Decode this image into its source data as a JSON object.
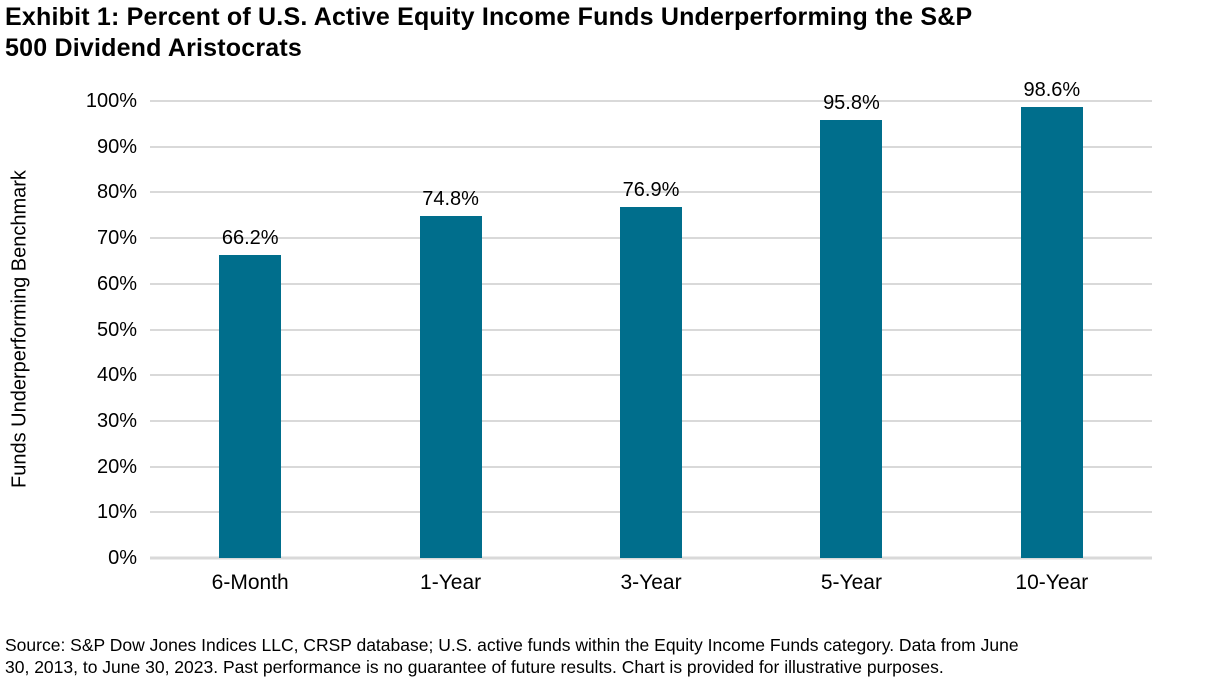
{
  "title": {
    "lines": [
      "Exhibit 1: Percent of U.S. Active Equity Income Funds Underperforming the S&P",
      "500 Dividend Aristocrats"
    ]
  },
  "chart_data": {
    "type": "bar",
    "title": "Exhibit 1: Percent of U.S. Active Equity Income Funds Underperforming the S&P 500 Dividend Aristocrats",
    "categories": [
      "6-Month",
      "1-Year",
      "3-Year",
      "5-Year",
      "10-Year"
    ],
    "values": [
      66.2,
      74.8,
      76.9,
      95.8,
      98.6
    ],
    "data_labels": [
      "66.2%",
      "74.8%",
      "76.9%",
      "95.8%",
      "98.6%"
    ],
    "xlabel": "",
    "ylabel": "Funds Underperforming Benchmark",
    "ylim": [
      0,
      100
    ],
    "ytick_step": 10,
    "ytick_suffix": "%",
    "grid": true,
    "legend": false,
    "bar_color": "#006E8C",
    "gridline_color": "#D9D9D9",
    "axis_line_color": "#D9D9D9",
    "label_color": "#000000"
  },
  "footer": {
    "lines": [
      "Source: S&P Dow Jones Indices LLC, CRSP database; U.S. active funds within the Equity Income Funds category. Data from June",
      "30, 2013, to June 30, 2023. Past performance is no guarantee of future results. Chart is provided for illustrative purposes."
    ]
  }
}
